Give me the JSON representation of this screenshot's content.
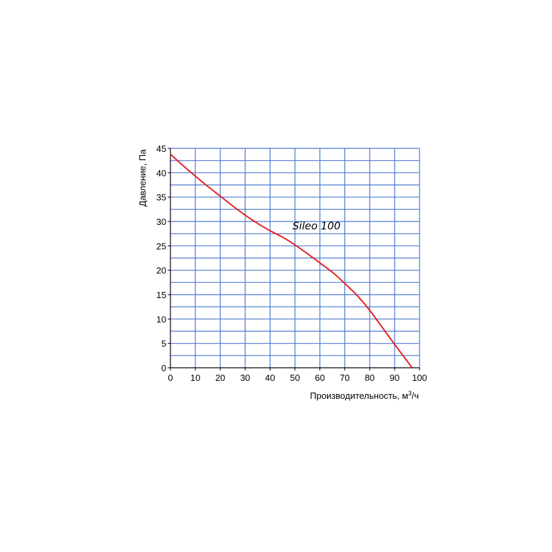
{
  "chart_data": {
    "type": "line",
    "title": "",
    "xlabel": "Производительность, м",
    "xlabel_sup": "3",
    "xlabel_tail": "/ч",
    "ylabel": "Давление, Па",
    "xlim": [
      0,
      100
    ],
    "ylim": [
      0,
      45
    ],
    "x_ticks": [
      0,
      10,
      20,
      30,
      40,
      50,
      60,
      70,
      80,
      90,
      100
    ],
    "y_ticks": [
      0,
      5,
      10,
      15,
      20,
      25,
      30,
      35,
      40,
      45
    ],
    "x_tick_labels": [
      "0",
      "10",
      "20",
      "30",
      "40",
      "50",
      "60",
      "70",
      "80",
      "90",
      "100"
    ],
    "y_tick_labels": [
      "0",
      "5",
      "10",
      "15",
      "20",
      "25",
      "30",
      "35",
      "40",
      "45"
    ],
    "grid": true,
    "grid_minor_y_step": 2.5,
    "grid_color": "#4a78d0",
    "series": [
      {
        "name": "",
        "color": "#e02020",
        "x": [
          0,
          5,
          10,
          15,
          20,
          25,
          30,
          35,
          40,
          45,
          50,
          55,
          60,
          65,
          70,
          75,
          80,
          85,
          90,
          95,
          97
        ],
        "y": [
          43.8,
          41.5,
          39.3,
          37.2,
          35.2,
          33.2,
          31.3,
          29.6,
          28.1,
          26.8,
          25.2,
          23.4,
          21.5,
          19.6,
          17.3,
          14.8,
          11.8,
          8.3,
          4.8,
          1.4,
          0
        ]
      }
    ],
    "annotations": [
      {
        "text": "Sileo 100",
        "x": 49,
        "y": 28.4
      }
    ]
  }
}
